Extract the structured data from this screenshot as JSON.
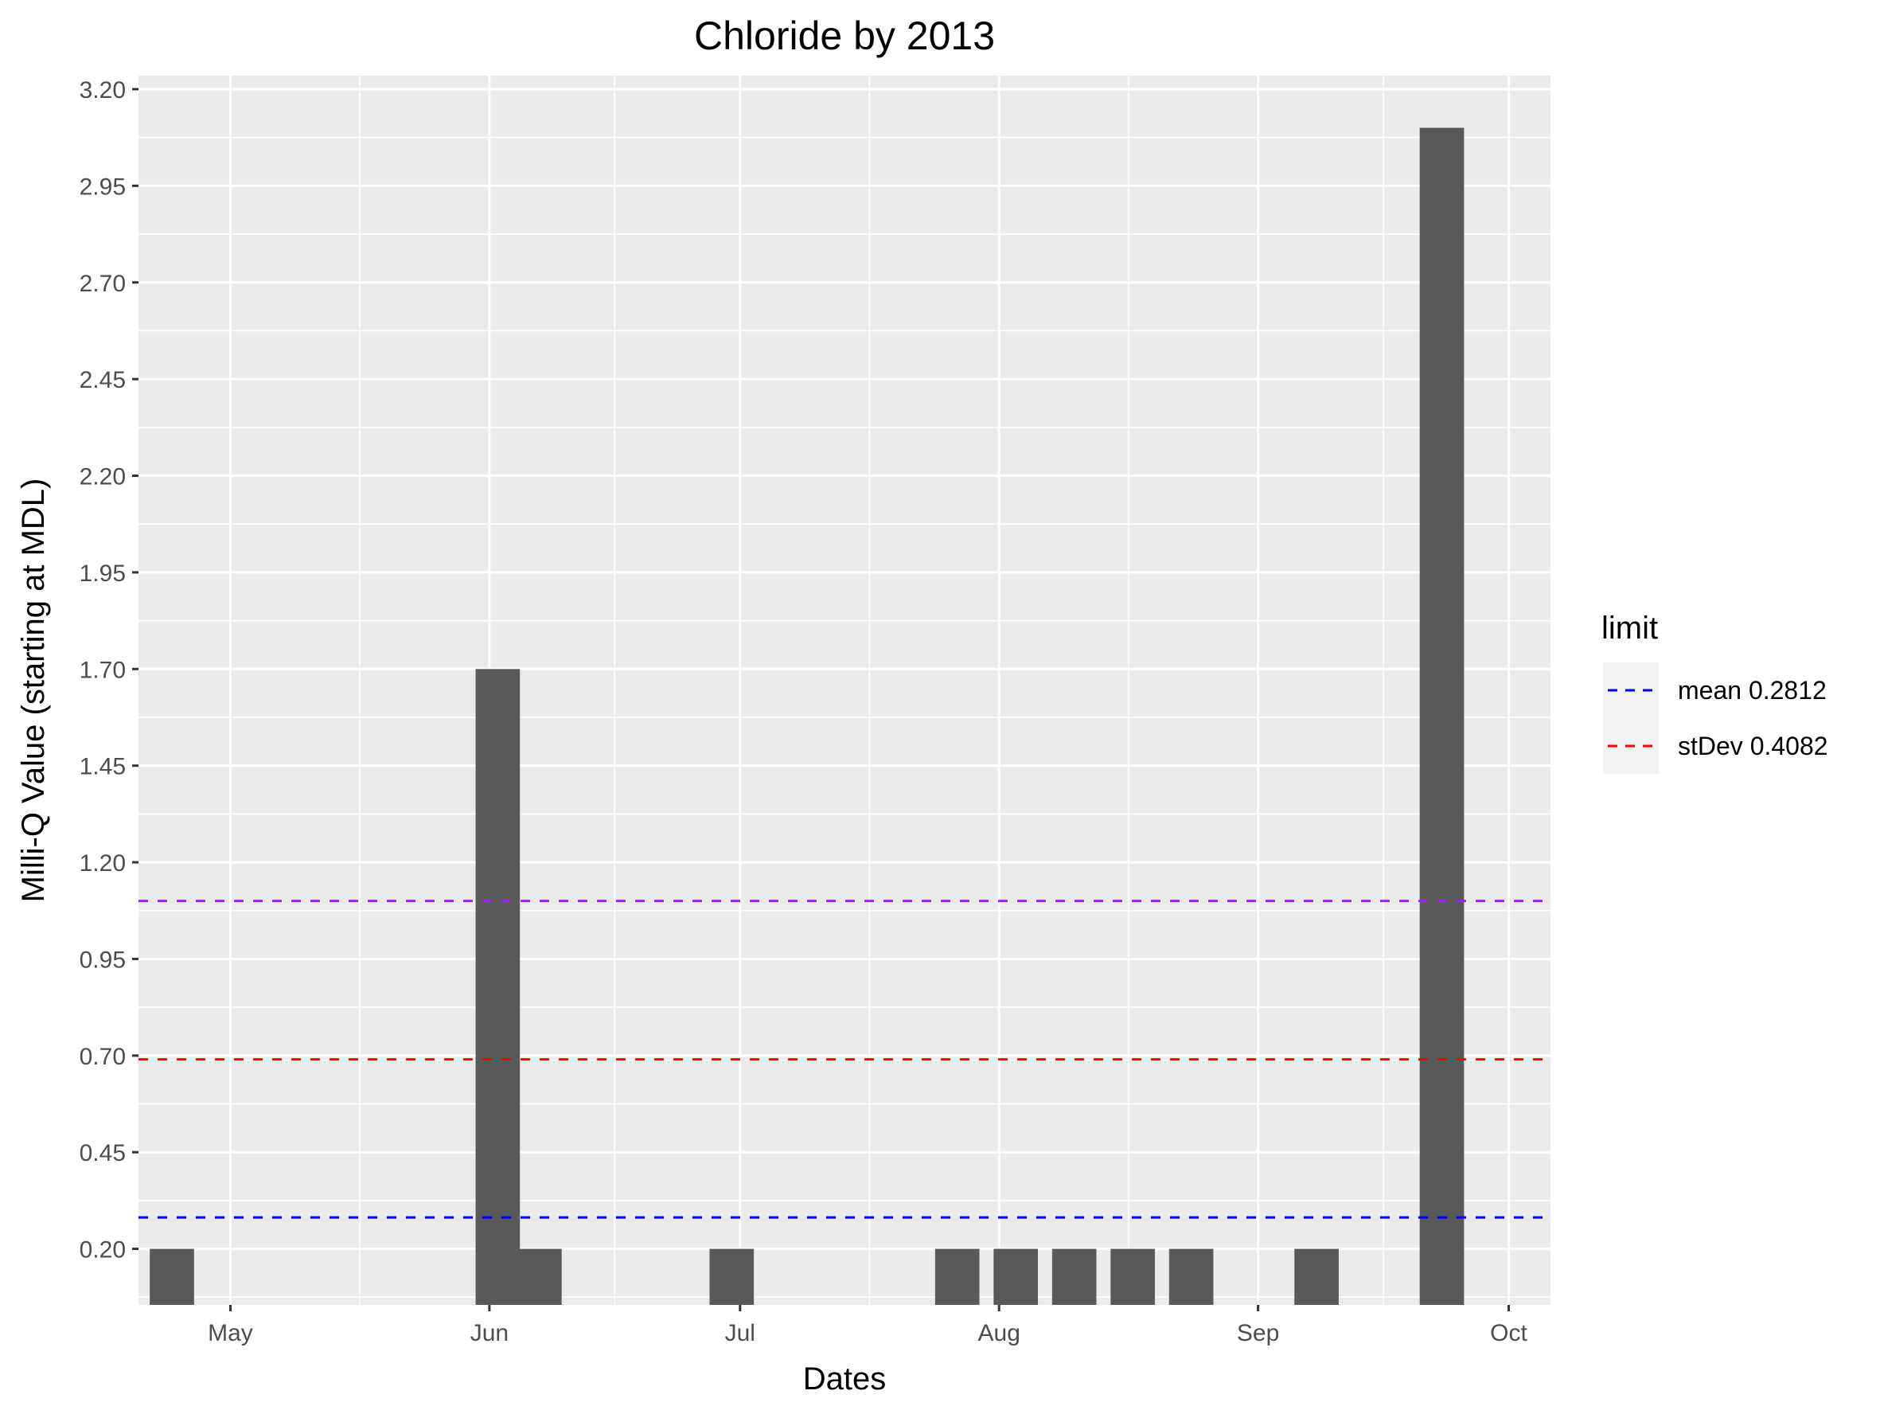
{
  "chart_data": {
    "type": "bar",
    "title": "Chloride by 2013",
    "xlabel": "Dates",
    "ylabel": "Milli-Q Value (starting at MDL)",
    "x_ticks": [
      {
        "date": "2013-05-01",
        "label": "May"
      },
      {
        "date": "2013-06-01",
        "label": "Jun"
      },
      {
        "date": "2013-07-01",
        "label": "Jul"
      },
      {
        "date": "2013-08-01",
        "label": "Aug"
      },
      {
        "date": "2013-09-01",
        "label": "Sep"
      },
      {
        "date": "2013-10-01",
        "label": "Oct"
      }
    ],
    "y_ticks": [
      {
        "value": 0.2,
        "label": "0.20"
      },
      {
        "value": 0.45,
        "label": "0.45"
      },
      {
        "value": 0.7,
        "label": "0.70"
      },
      {
        "value": 0.95,
        "label": "0.95"
      },
      {
        "value": 1.2,
        "label": "1.20"
      },
      {
        "value": 1.45,
        "label": "1.45"
      },
      {
        "value": 1.7,
        "label": "1.70"
      },
      {
        "value": 1.95,
        "label": "1.95"
      },
      {
        "value": 2.2,
        "label": "2.20"
      },
      {
        "value": 2.45,
        "label": "2.45"
      },
      {
        "value": 2.7,
        "label": "2.70"
      },
      {
        "value": 2.95,
        "label": "2.95"
      },
      {
        "value": 3.2,
        "label": "3.20"
      }
    ],
    "xlim": [
      "2013-04-20",
      "2013-10-06"
    ],
    "ylim": [
      0.055,
      3.235
    ],
    "bar_base": 0.055,
    "bar_width_days": 5.3,
    "bars": [
      {
        "date": "2013-04-24",
        "value": 0.2
      },
      {
        "date": "2013-06-02",
        "value": 1.7
      },
      {
        "date": "2013-06-07",
        "value": 0.2
      },
      {
        "date": "2013-06-30",
        "value": 0.2
      },
      {
        "date": "2013-07-27",
        "value": 0.2
      },
      {
        "date": "2013-08-03",
        "value": 0.2
      },
      {
        "date": "2013-08-10",
        "value": 0.2
      },
      {
        "date": "2013-08-17",
        "value": 0.2
      },
      {
        "date": "2013-08-24",
        "value": 0.2
      },
      {
        "date": "2013-09-08",
        "value": 0.2
      },
      {
        "date": "2013-09-23",
        "value": 3.1
      }
    ],
    "reference_lines": [
      {
        "value": 0.2812,
        "color": "#0000ff",
        "style": "dashed"
      },
      {
        "value": 0.69,
        "color": "#ff0000",
        "style": "dashed"
      },
      {
        "value": 1.1,
        "color": "#a020f0",
        "style": "dashed"
      }
    ],
    "legend": {
      "title": "limit",
      "placement": "right",
      "entries": [
        {
          "label": "mean 0.2812",
          "color": "#0000ff",
          "style": "dashed"
        },
        {
          "label": "stDev 0.4082",
          "color": "#ff0000",
          "style": "dashed"
        }
      ]
    },
    "grid": true,
    "bar_color": "#595959",
    "panel_color": "#ebebeb"
  }
}
